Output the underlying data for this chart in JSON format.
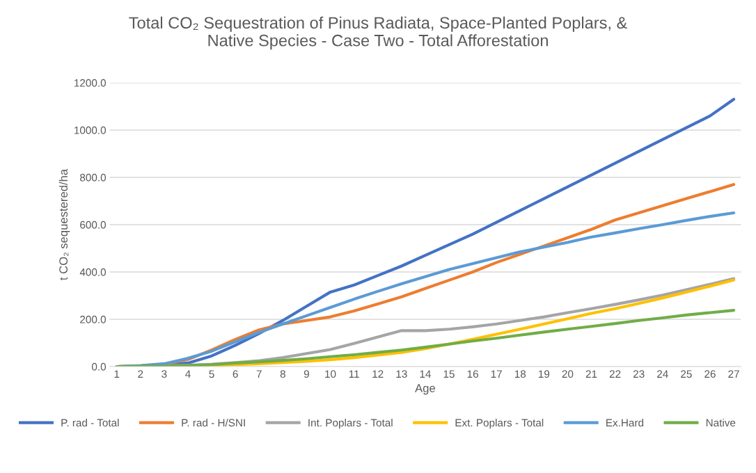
{
  "chart_data": {
    "type": "line",
    "title": "Total CO₂ Sequestration of Pinus Radiata, Space-Planted Poplars, &\nNative Species - Case Two - Total Afforestation",
    "xlabel": "Age",
    "ylabel": "t CO₂ sequestered/ha",
    "categories": [
      "1",
      "2",
      "3",
      "4",
      "5",
      "6",
      "7",
      "8",
      "9",
      "10",
      "11",
      "12",
      "13",
      "14",
      "15",
      "16",
      "17",
      "18",
      "19",
      "20",
      "21",
      "22",
      "23",
      "24",
      "25",
      "26",
      "27"
    ],
    "series": [
      {
        "name": "P. rad - Total",
        "color": "#4472c4",
        "values": [
          0,
          3,
          8,
          15,
          45,
          90,
          140,
          195,
          255,
          315,
          345,
          385,
          425,
          470,
          515,
          560,
          610,
          660,
          710,
          760,
          810,
          860,
          910,
          960,
          1010,
          1060,
          1130
        ]
      },
      {
        "name": "P. rad - H/SNI",
        "color": "#ed7d31",
        "values": [
          0,
          3,
          10,
          30,
          70,
          115,
          155,
          180,
          195,
          210,
          235,
          265,
          295,
          330,
          365,
          400,
          440,
          475,
          510,
          545,
          580,
          620,
          650,
          680,
          710,
          740,
          770
        ]
      },
      {
        "name": "Int. Poplars - Total",
        "color": "#a5a5a5",
        "values": [
          0,
          1,
          3,
          6,
          10,
          17,
          25,
          38,
          55,
          72,
          98,
          125,
          152,
          152,
          158,
          168,
          180,
          195,
          210,
          228,
          245,
          263,
          282,
          302,
          325,
          348,
          372
        ]
      },
      {
        "name": "Ext. Poplars - Total",
        "color": "#ffc000",
        "values": [
          null,
          null,
          null,
          2,
          4,
          8,
          12,
          17,
          22,
          29,
          38,
          49,
          60,
          76,
          95,
          115,
          137,
          158,
          180,
          202,
          225,
          245,
          267,
          290,
          315,
          340,
          366
        ]
      },
      {
        "name": "Ex.Hard",
        "color": "#5b9bd5",
        "values": [
          0,
          4,
          12,
          35,
          65,
          105,
          145,
          180,
          215,
          250,
          285,
          318,
          350,
          380,
          410,
          435,
          460,
          485,
          505,
          525,
          548,
          565,
          583,
          600,
          618,
          635,
          650
        ]
      },
      {
        "name": "Native",
        "color": "#70ad47",
        "values": [
          0,
          1,
          2,
          4,
          8,
          15,
          20,
          26,
          33,
          42,
          50,
          60,
          70,
          82,
          95,
          108,
          120,
          133,
          146,
          158,
          170,
          182,
          195,
          206,
          218,
          228,
          238
        ]
      }
    ],
    "ylim": [
      0,
      1200
    ],
    "yticks": [
      {
        "value": 0,
        "label": "0.0"
      },
      {
        "value": 200,
        "label": "200.0"
      },
      {
        "value": 400,
        "label": "400.0"
      },
      {
        "value": 600,
        "label": "600.0"
      },
      {
        "value": 800,
        "label": "800.0"
      },
      {
        "value": 1000,
        "label": "1000.0"
      },
      {
        "value": 1200,
        "label": "1200.0"
      }
    ],
    "grid": "y",
    "legend": "bottom",
    "marker": "none",
    "line_style": "solid"
  }
}
